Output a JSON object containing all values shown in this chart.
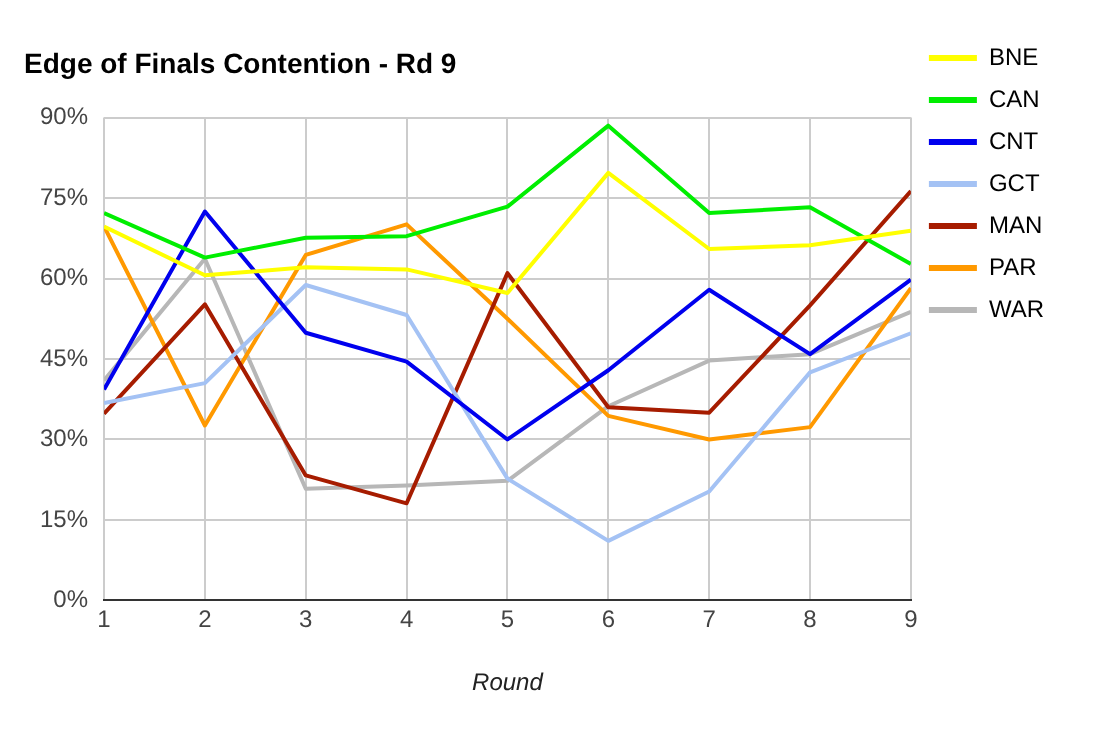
{
  "chart_data": {
    "type": "line",
    "title": "Edge of Finals Contention - Rd 9",
    "xlabel": "Round",
    "x": [
      1,
      2,
      3,
      4,
      5,
      6,
      7,
      8,
      9
    ],
    "series": [
      {
        "name": "BNE",
        "color": "#ffff00",
        "values": [
          69.7,
          60.6,
          62.1,
          61.7,
          57.3,
          79.7,
          65.5,
          66.2,
          68.9
        ]
      },
      {
        "name": "CAN",
        "color": "#00ee00",
        "values": [
          72.2,
          63.9,
          67.6,
          67.9,
          73.4,
          88.5,
          72.2,
          73.3,
          62.7
        ]
      },
      {
        "name": "CNT",
        "color": "#0000ee",
        "values": [
          39.3,
          72.5,
          49.9,
          44.5,
          30,
          42.9,
          57.9,
          45.9,
          59.8
        ]
      },
      {
        "name": "GCT",
        "color": "#a4c2f4",
        "values": [
          36.8,
          40.5,
          58.8,
          53.2,
          22.7,
          11.1,
          20.3,
          42.5,
          49.8
        ]
      },
      {
        "name": "MAN",
        "color": "#a61c00",
        "values": [
          34.8,
          55.2,
          23.3,
          18.1,
          61,
          36,
          35,
          55,
          76.3
        ]
      },
      {
        "name": "PAR",
        "color": "#ff9900",
        "values": [
          69.7,
          32.6,
          64.4,
          70.1,
          52.5,
          34.4,
          30,
          32.3,
          58.2
        ]
      },
      {
        "name": "WAR",
        "color": "#b7b7b7",
        "values": [
          41,
          63.7,
          20.8,
          21.4,
          22.3,
          36.2,
          44.7,
          45.9,
          53.8
        ]
      }
    ],
    "xlim": [
      1,
      9
    ],
    "xticks": [
      1,
      2,
      3,
      4,
      5,
      6,
      7,
      8,
      9
    ],
    "ylim": [
      0,
      90
    ],
    "yticks": [
      {
        "value": 0,
        "label": "0%"
      },
      {
        "value": 15,
        "label": "15%"
      },
      {
        "value": 30,
        "label": "30%"
      },
      {
        "value": 45,
        "label": "45%"
      },
      {
        "value": 60,
        "label": "60%"
      },
      {
        "value": 75,
        "label": "75%"
      },
      {
        "value": 90,
        "label": "90%"
      }
    ],
    "grid": true,
    "legend": "right",
    "marker": "none",
    "line_style": "solid"
  }
}
